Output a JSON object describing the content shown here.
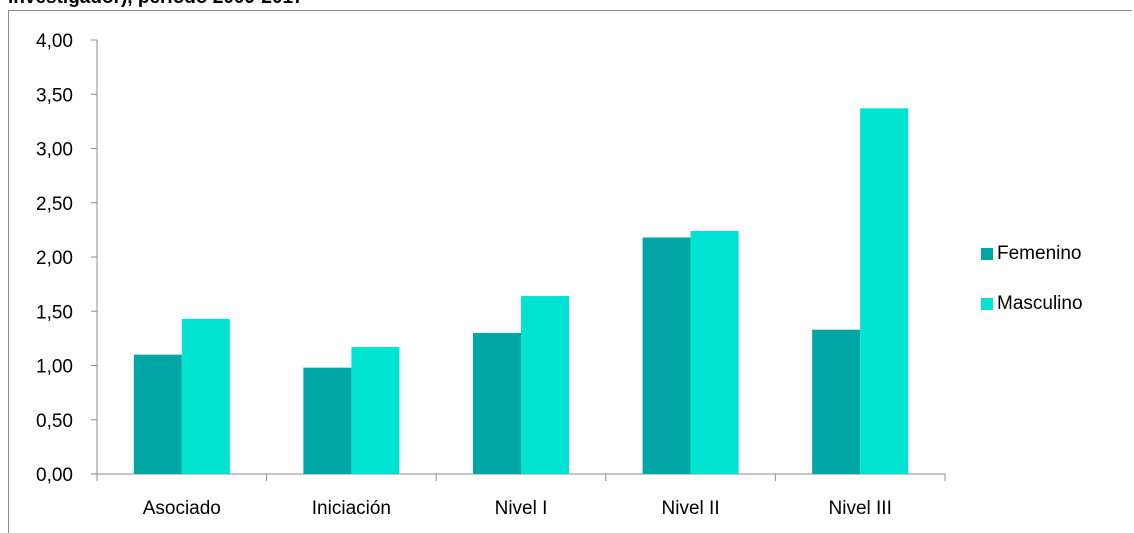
{
  "header": {
    "title": "investigador), periodo 2009-2017"
  },
  "colors": {
    "femenino": "#00a5a5",
    "masculino": "#00e2d2",
    "axis": "#8c8c8c"
  },
  "chart_data": {
    "type": "bar",
    "title": "investigador), periodo 2009-2017",
    "categories": [
      "Asociado",
      "Iniciación",
      "Nivel I",
      "Nivel II",
      "Nivel III"
    ],
    "series": [
      {
        "name": "Femenino",
        "values": [
          1.1,
          0.98,
          1.3,
          2.18,
          1.33
        ]
      },
      {
        "name": "Masculino",
        "values": [
          1.43,
          1.17,
          1.64,
          2.24,
          3.37
        ]
      }
    ],
    "ylim": [
      0,
      4
    ],
    "yticks": [
      "0,00",
      "0,50",
      "1,00",
      "1,50",
      "2,00",
      "2,50",
      "3,00",
      "3,50",
      "4,00"
    ],
    "xlabel": "",
    "ylabel": "",
    "grid": false,
    "legend": "right"
  }
}
